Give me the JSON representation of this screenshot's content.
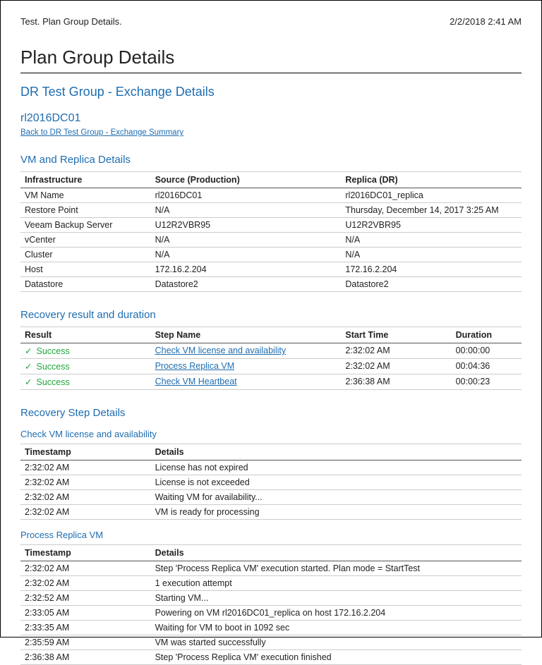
{
  "header": {
    "left": "Test. Plan Group Details.",
    "right": "2/2/2018 2:41 AM"
  },
  "title": "Plan Group Details",
  "group_title": "DR Test Group - Exchange Details",
  "vm_name_heading": "rl2016DC01",
  "back_link": "Back to DR Test Group - Exchange Summary",
  "vm_details": {
    "section_title": "VM and Replica Details",
    "columns": {
      "infra": "Infrastructure",
      "source": "Source (Production)",
      "replica": "Replica (DR)"
    },
    "rows": [
      {
        "infra": "VM Name",
        "source": "rl2016DC01",
        "replica": "rl2016DC01_replica"
      },
      {
        "infra": "Restore Point",
        "source": "N/A",
        "replica": "Thursday, December 14, 2017 3:25 AM"
      },
      {
        "infra": "Veeam Backup Server",
        "source": "U12R2VBR95",
        "replica": "U12R2VBR95"
      },
      {
        "infra": "vCenter",
        "source": "N/A",
        "replica": "N/A"
      },
      {
        "infra": "Cluster",
        "source": "N/A",
        "replica": "N/A"
      },
      {
        "infra": "Host",
        "source": "172.16.2.204",
        "replica": "172.16.2.204"
      },
      {
        "infra": "Datastore",
        "source": "Datastore2",
        "replica": "Datastore2"
      }
    ]
  },
  "recovery_result": {
    "section_title": "Recovery result and duration",
    "columns": {
      "result": "Result",
      "step": "Step Name",
      "start": "Start Time",
      "duration": "Duration"
    },
    "rows": [
      {
        "result": "Success",
        "step": "Check VM license and availability",
        "start": "2:32:02 AM",
        "duration": "00:00:00"
      },
      {
        "result": "Success",
        "step": "Process Replica VM",
        "start": "2:32:02 AM",
        "duration": "00:04:36"
      },
      {
        "result": "Success",
        "step": "Check VM Heartbeat",
        "start": "2:36:38 AM",
        "duration": "00:00:23"
      }
    ]
  },
  "recovery_steps": {
    "section_title": "Recovery Step Details",
    "columns": {
      "ts": "Timestamp",
      "details": "Details"
    },
    "subsections": [
      {
        "title": "Check VM license and availability",
        "rows": [
          {
            "ts": "2:32:02 AM",
            "details": "License has not expired"
          },
          {
            "ts": "2:32:02 AM",
            "details": "License is not exceeded"
          },
          {
            "ts": "2:32:02 AM",
            "details": "Waiting VM for availability..."
          },
          {
            "ts": "2:32:02 AM",
            "details": "VM is ready for processing"
          }
        ]
      },
      {
        "title": "Process Replica VM",
        "rows": [
          {
            "ts": "2:32:02 AM",
            "details": "Step 'Process Replica VM' execution started. Plan mode = StartTest"
          },
          {
            "ts": "2:32:02 AM",
            "details": "1 execution attempt"
          },
          {
            "ts": "2:32:52 AM",
            "details": "Starting VM..."
          },
          {
            "ts": "2:33:05 AM",
            "details": "Powering on VM rl2016DC01_replica on host 172.16.2.204"
          },
          {
            "ts": "2:33:35 AM",
            "details": "Waiting for VM to boot in 1092 sec"
          },
          {
            "ts": "2:35:59 AM",
            "details": "VM was started successfully"
          },
          {
            "ts": "2:36:38 AM",
            "details": "Step 'Process Replica VM' execution finished"
          }
        ]
      }
    ]
  }
}
